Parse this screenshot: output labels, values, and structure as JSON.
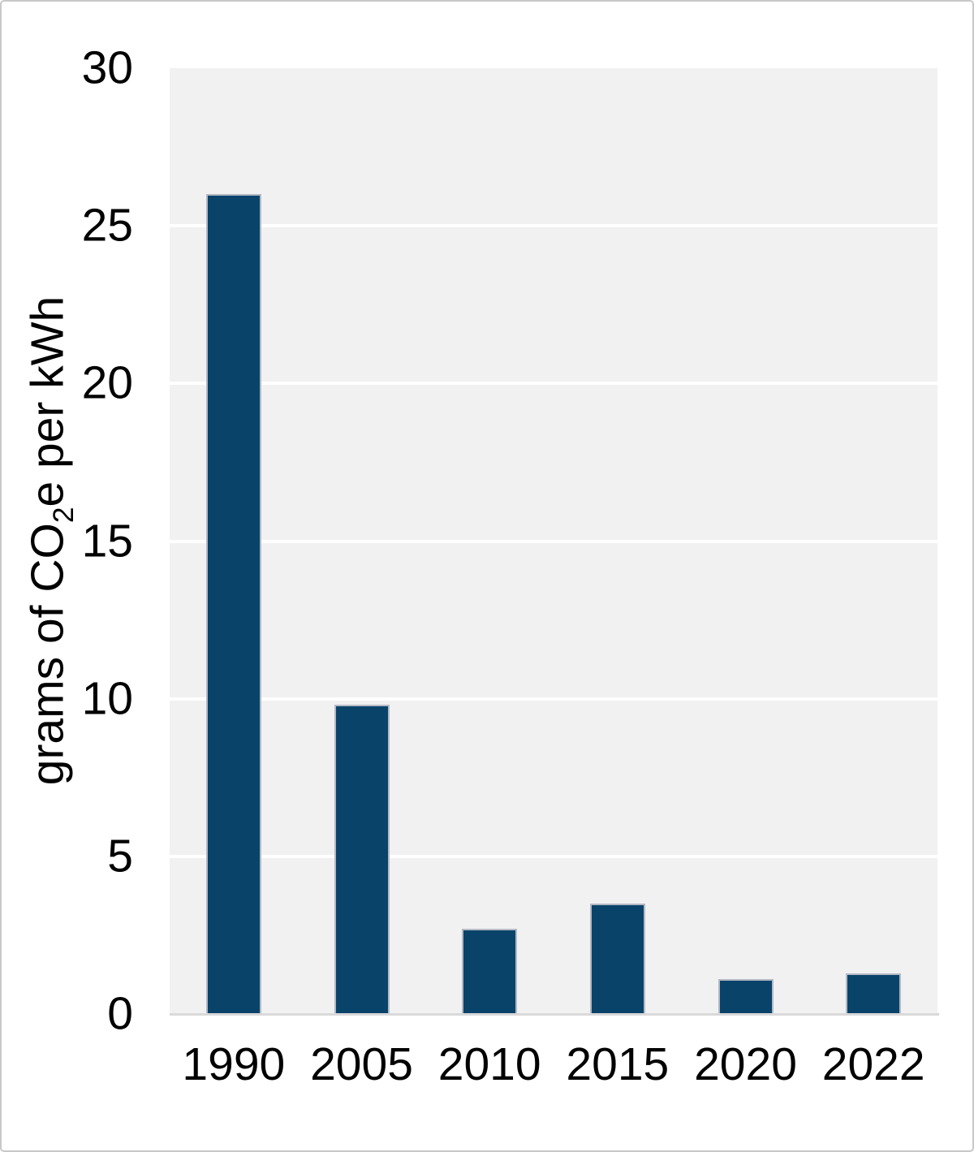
{
  "chart_data": {
    "type": "bar",
    "categories": [
      "1990",
      "2005",
      "2010",
      "2015",
      "2020",
      "2022"
    ],
    "values": [
      26,
      9.8,
      2.7,
      3.5,
      1.1,
      1.3
    ],
    "title": "",
    "xlabel": "",
    "ylabel": "grams of CO2e per kWh",
    "ylabel_parts": {
      "pre": "grams of CO",
      "sub": "2",
      "post": "e per kWh"
    },
    "ylim": [
      0,
      30
    ],
    "yticks": [
      0,
      5,
      10,
      15,
      20,
      25,
      30
    ],
    "gridlines": "horizontal white lines at each 5-unit tick on light gray plot background",
    "legend_position": "none",
    "colors": {
      "bar": "#0a436a",
      "bar_edge": "#b4b9c4",
      "plot_background": "#f1f1f2",
      "gridline": "#ffffff",
      "axis_line": "#d9d9d9",
      "frame_border": "#c8c8c8",
      "text": "#000000",
      "page_background": "#ffffff"
    }
  }
}
